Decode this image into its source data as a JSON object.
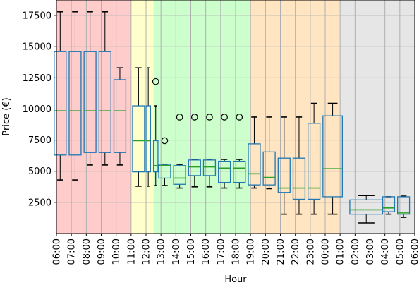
{
  "chart_data": {
    "type": "box",
    "xlabel": "Hour",
    "ylabel": "Price (€)",
    "ylim": [
      0,
      18750
    ],
    "yticks": [
      2500,
      5000,
      7500,
      10000,
      12500,
      15000,
      17500
    ],
    "grid": true,
    "colors": {
      "box": "#1f77b4",
      "median": "#2ca02c",
      "grid": "#b0b0b0",
      "band_red": "#ffcccc",
      "band_yellow": "#ffffcc",
      "band_green": "#ccffcc",
      "band_orange": "#ffe5c2",
      "band_gray": "#e6e6e6"
    },
    "bands": [
      {
        "from": 0,
        "to": 5,
        "color": "band_red"
      },
      {
        "from": 5,
        "to": 6.5,
        "color": "band_yellow"
      },
      {
        "from": 6.5,
        "to": 13,
        "color": "band_green"
      },
      {
        "from": 13,
        "to": 19,
        "color": "band_orange"
      },
      {
        "from": 19,
        "to": 24,
        "color": "band_gray"
      }
    ],
    "categories": [
      "06:00",
      "07:00",
      "08:00",
      "09:00",
      "10:00",
      "11:00",
      "12:00",
      "13:00",
      "14:00",
      "15:00",
      "16:00",
      "17:00",
      "18:00",
      "19:00",
      "20:00",
      "21:00",
      "22:00",
      "23:00",
      "00:00",
      "01:00",
      "02:00",
      "03:00",
      "04:00",
      "05:00",
      "06:00"
    ],
    "boxes": [
      {
        "x": 0.25,
        "w": 0.8,
        "whislo": 4300,
        "q1": 6300,
        "med": 9850,
        "q3": 14600,
        "whishi": 17800,
        "fliers": []
      },
      {
        "x": 1.25,
        "w": 0.8,
        "whislo": 4300,
        "q1": 6300,
        "med": 9850,
        "q3": 14600,
        "whishi": 17800,
        "fliers": []
      },
      {
        "x": 2.25,
        "w": 0.8,
        "whislo": 5500,
        "q1": 6500,
        "med": 9850,
        "q3": 14600,
        "whishi": 17800,
        "fliers": []
      },
      {
        "x": 3.25,
        "w": 0.8,
        "whislo": 5500,
        "q1": 6500,
        "med": 9850,
        "q3": 14600,
        "whishi": 17800,
        "fliers": []
      },
      {
        "x": 4.25,
        "w": 0.8,
        "whislo": 5500,
        "q1": 6500,
        "med": 9850,
        "q3": 12350,
        "whishi": 13300,
        "fliers": []
      },
      {
        "x": 5.5,
        "w": 0.8,
        "whislo": 3800,
        "q1": 4950,
        "med": 7450,
        "q3": 10250,
        "whishi": 13300,
        "fliers": []
      },
      {
        "x": 6.15,
        "w": 0.3,
        "whislo": 3800,
        "q1": 4950,
        "med": 7450,
        "q3": 10250,
        "whishi": 13300,
        "fliers": []
      },
      {
        "x": 6.65,
        "w": 0.3,
        "whislo": 3850,
        "q1": 4950,
        "med": 5450,
        "q3": 7450,
        "whishi": 10250,
        "fliers": [
          12200
        ]
      },
      {
        "x": 7.25,
        "w": 0.8,
        "whislo": 3850,
        "q1": 4450,
        "med": 5450,
        "q3": 5550,
        "whishi": 5550,
        "fliers": [
          7450
        ]
      },
      {
        "x": 8.25,
        "w": 0.8,
        "whislo": 3650,
        "q1": 3950,
        "med": 4450,
        "q3": 5450,
        "whishi": 5550,
        "fliers": [
          9350
        ]
      },
      {
        "x": 9.25,
        "w": 0.8,
        "whislo": 3750,
        "q1": 4650,
        "med": 5350,
        "q3": 5900,
        "whishi": 5950,
        "fliers": [
          9350
        ]
      },
      {
        "x": 10.25,
        "w": 0.8,
        "whislo": 3750,
        "q1": 4650,
        "med": 5350,
        "q3": 5900,
        "whishi": 5950,
        "fliers": [
          9350
        ]
      },
      {
        "x": 11.25,
        "w": 0.8,
        "whislo": 3650,
        "q1": 4100,
        "med": 5250,
        "q3": 5800,
        "whishi": 5950,
        "fliers": [
          9350
        ]
      },
      {
        "x": 12.25,
        "w": 0.8,
        "whislo": 3650,
        "q1": 4100,
        "med": 5250,
        "q3": 5800,
        "whishi": 5950,
        "fliers": [
          9350
        ]
      },
      {
        "x": 13.25,
        "w": 0.8,
        "whislo": 3650,
        "q1": 3900,
        "med": 4800,
        "q3": 7200,
        "whishi": 9350,
        "fliers": []
      },
      {
        "x": 14.25,
        "w": 0.8,
        "whislo": 3600,
        "q1": 3900,
        "med": 4500,
        "q3": 6550,
        "whishi": 9350,
        "fliers": []
      },
      {
        "x": 15.25,
        "w": 0.8,
        "whislo": 1550,
        "q1": 3300,
        "med": 3650,
        "q3": 6050,
        "whishi": 9350,
        "fliers": []
      },
      {
        "x": 16.25,
        "w": 0.8,
        "whislo": 1550,
        "q1": 2750,
        "med": 3650,
        "q3": 6050,
        "whishi": 9350,
        "fliers": []
      },
      {
        "x": 17.25,
        "w": 0.8,
        "whislo": 1550,
        "q1": 2750,
        "med": 3650,
        "q3": 8850,
        "whishi": 10450,
        "fliers": []
      },
      {
        "x": 18.5,
        "w": 1.3,
        "whislo": 1550,
        "q1": 2950,
        "med": 5200,
        "q3": 9450,
        "whishi": 10450,
        "fliers": []
      },
      {
        "x": 20.75,
        "w": 2.2,
        "whislo": 850,
        "q1": 1550,
        "med": 1900,
        "q3": 2700,
        "whishi": 3050,
        "fliers": []
      },
      {
        "x": 22.25,
        "w": 0.8,
        "whislo": 1550,
        "q1": 1750,
        "med": 2050,
        "q3": 2950,
        "whishi": 2950,
        "fliers": []
      },
      {
        "x": 23.25,
        "w": 0.8,
        "whislo": 1300,
        "q1": 1550,
        "med": 1650,
        "q3": 2950,
        "whishi": 3000,
        "fliers": []
      }
    ]
  }
}
